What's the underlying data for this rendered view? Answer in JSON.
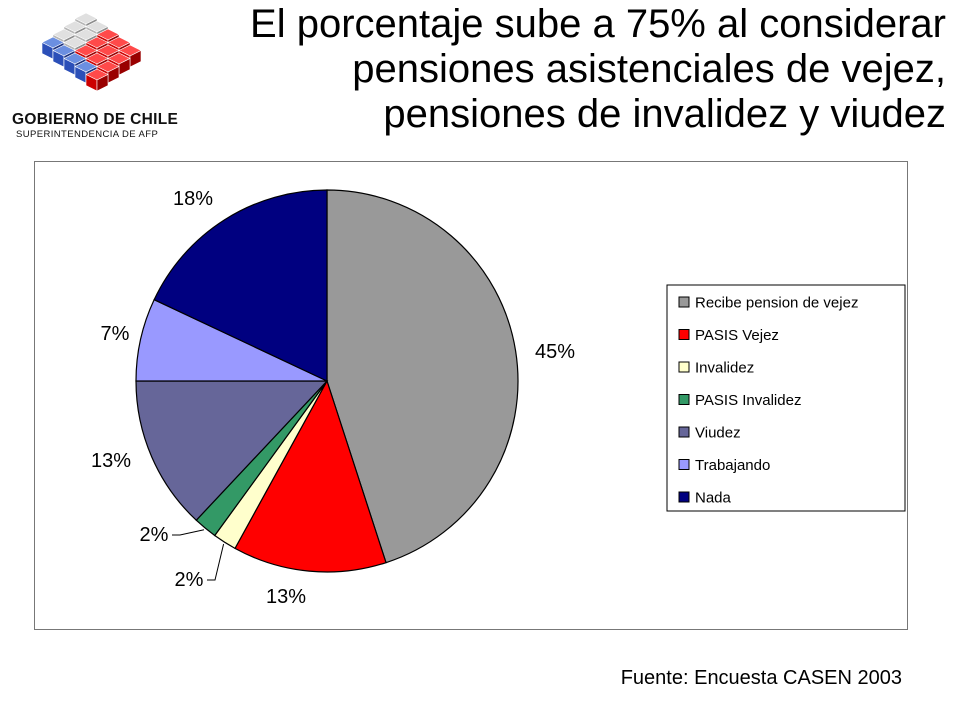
{
  "header": {
    "logo_title": "GOBIERNO DE CHILE",
    "logo_subtitle": "SUPERINTENDENCIA DE AFP",
    "title_lines": [
      "El porcentaje sube a 75% al considerar",
      "pensiones asistenciales de vejez,",
      "pensiones de invalidez y viudez"
    ]
  },
  "chart_data": {
    "type": "pie",
    "categories": [
      "Recibe pension de vejez",
      "PASIS Vejez",
      "Invalidez",
      "PASIS Invalidez",
      "Viudez",
      "Trabajando",
      "Nada"
    ],
    "values": [
      45,
      13,
      2,
      2,
      13,
      7,
      18
    ],
    "data_labels": [
      "45%",
      "13%",
      "2%",
      "2%",
      "13%",
      "7%",
      "18%"
    ],
    "colors": [
      "#999999",
      "#ff0000",
      "#ffffcc",
      "#339966",
      "#666699",
      "#9999ff",
      "#000080"
    ],
    "legend": "right",
    "legend_entries": [
      "Recibe pension de vejez",
      "PASIS Vejez",
      "Invalidez",
      "PASIS Invalidez",
      "Viudez",
      "Trabajando",
      "Nada"
    ]
  },
  "footer": {
    "source": "Fuente: Encuesta CASEN 2003"
  }
}
